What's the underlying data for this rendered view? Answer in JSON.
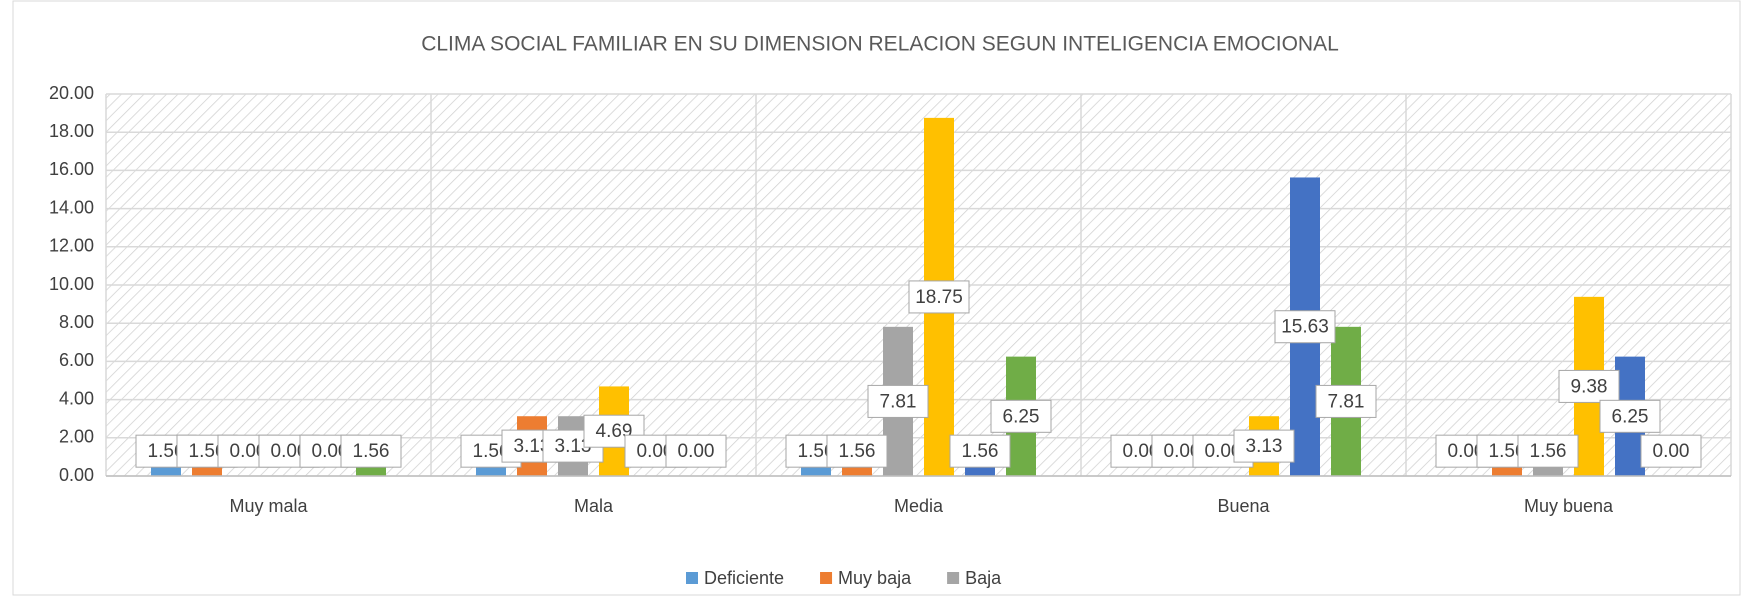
{
  "chart_data": {
    "type": "bar",
    "title": "CLIMA SOCIAL FAMILIAR EN SU DIMENSION RELACION SEGUN INTELIGENCIA EMOCIONAL",
    "categories": [
      "Muy mala",
      "Mala",
      "Media",
      "Buena",
      "Muy buena"
    ],
    "series": [
      {
        "name": "Deficiente",
        "color": "#5b9bd5",
        "values": [
          1.56,
          1.56,
          1.56,
          0,
          0
        ],
        "value_labels": [
          "1.56",
          "1.56",
          "1.56",
          "0.00",
          "0.00"
        ]
      },
      {
        "name": "Muy baja",
        "color": "#ed7d31",
        "values": [
          1.56,
          3.13,
          1.56,
          0,
          1.56
        ],
        "value_labels": [
          "1.56",
          "3.13",
          "1.56",
          "0.00",
          "1.56"
        ]
      },
      {
        "name": "Baja",
        "color": "#a5a5a5",
        "values": [
          0,
          3.13,
          7.81,
          0,
          1.56
        ],
        "value_labels": [
          "0.00",
          "3.13",
          "7.81",
          "0.00",
          "1.56"
        ]
      },
      {
        "color": "#ffc000",
        "values": [
          0,
          4.69,
          18.75,
          3.13,
          9.38
        ],
        "value_labels": [
          "0.00",
          "4.69",
          "18.75",
          "3.13",
          "9.38"
        ]
      },
      {
        "color": "#4472c4",
        "values": [
          0,
          0,
          1.56,
          15.63,
          6.25
        ],
        "value_labels": [
          "0.00",
          "0.00",
          "1.56",
          "15.63",
          "6.25"
        ]
      },
      {
        "color": "#70ad47",
        "values": [
          1.56,
          0,
          6.25,
          7.81,
          0
        ],
        "value_labels": [
          "1.56",
          "0.00",
          "6.25",
          "7.81",
          "0.00"
        ]
      }
    ],
    "ylim": [
      0,
      20
    ],
    "yticks": [
      {
        "value": 0,
        "label": "0.00"
      },
      {
        "value": 2,
        "label": "2.00"
      },
      {
        "value": 4,
        "label": "4.00"
      },
      {
        "value": 6,
        "label": "6.00"
      },
      {
        "value": 8,
        "label": "8.00"
      },
      {
        "value": 10,
        "label": "10.00"
      },
      {
        "value": 12,
        "label": "12.00"
      },
      {
        "value": 14,
        "label": "14.00"
      },
      {
        "value": 16,
        "label": "16.00"
      },
      {
        "value": 18,
        "label": "18.00"
      },
      {
        "value": 20,
        "label": "20.00"
      }
    ],
    "grid": true,
    "legend": "bottom"
  }
}
